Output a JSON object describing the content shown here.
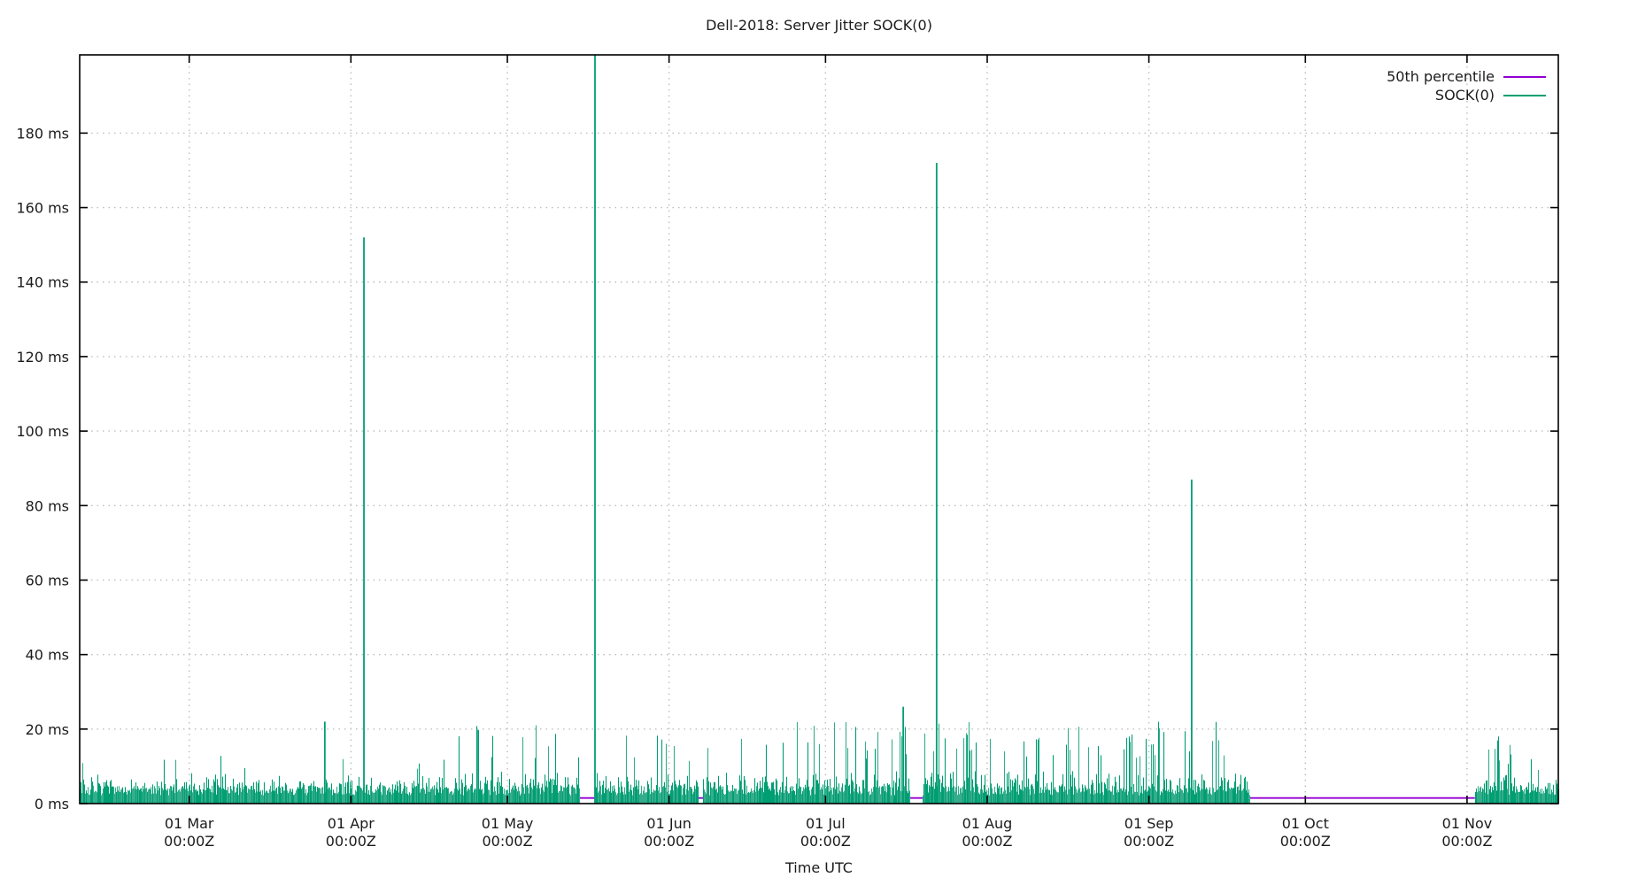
{
  "title": "Dell-2018: Server Jitter SOCK(0)",
  "legend": {
    "position": "top-right-inside",
    "items": [
      {
        "label": "50th percentile",
        "color": "#9400d3"
      },
      {
        "label": "SOCK(0)",
        "color": "#009e73"
      }
    ]
  },
  "axes": {
    "x_label": "Time UTC",
    "x_domain_days": [
      0,
      283.5
    ],
    "x_domain_note": "day 0 = left plot edge (~08 Feb 2018), day 283.5 = right edge (~18 Nov 2018)",
    "x_ticks": [
      {
        "day": 21,
        "line1": "01 Mar",
        "line2": "00:00Z"
      },
      {
        "day": 52,
        "line1": "01 Apr",
        "line2": "00:00Z"
      },
      {
        "day": 82,
        "line1": "01 May",
        "line2": "00:00Z"
      },
      {
        "day": 113,
        "line1": "01 Jun",
        "line2": "00:00Z"
      },
      {
        "day": 143,
        "line1": "01 Jul",
        "line2": "00:00Z"
      },
      {
        "day": 174,
        "line1": "01 Aug",
        "line2": "00:00Z"
      },
      {
        "day": 205,
        "line1": "01 Sep",
        "line2": "00:00Z"
      },
      {
        "day": 235,
        "line1": "01 Oct",
        "line2": "00:00Z"
      },
      {
        "day": 266,
        "line1": "01 Nov",
        "line2": "00:00Z"
      }
    ],
    "y_max_ms": 201,
    "y_ticks": [
      {
        "value": 0,
        "label": "0 ms"
      },
      {
        "value": 20,
        "label": "20 ms"
      },
      {
        "value": 40,
        "label": "40 ms"
      },
      {
        "value": 60,
        "label": "60 ms"
      },
      {
        "value": 80,
        "label": "80 ms"
      },
      {
        "value": 100,
        "label": "100 ms"
      },
      {
        "value": 120,
        "label": "120 ms"
      },
      {
        "value": 140,
        "label": "140 ms"
      },
      {
        "value": 160,
        "label": "160 ms"
      },
      {
        "value": 180,
        "label": "180 ms"
      }
    ],
    "grid": "dotted gray at every month (vertical) and every 20 ms (horizontal)"
  },
  "colors": {
    "sock0_green": "#009e73",
    "sock0_green_light": "#35ad8c",
    "percentile_purple": "#9400d3",
    "grid_gray": "#bdbdbd",
    "border_black": "#000000",
    "text": "#1b1b1b"
  },
  "chart_data": {
    "type": "line",
    "subtype": "impulse jitter time-series",
    "x_unit": "days since left edge (~08 Feb 2018)",
    "y_unit": "ms",
    "title": "Dell-2018: Server Jitter SOCK(0)",
    "xlabel": "Time UTC",
    "ylabel": "",
    "ylim": [
      0,
      201
    ],
    "series": [
      {
        "name": "50th percentile",
        "color": "#9400d3",
        "style": "flat horizontal line, hidden under green where data exists, visible in data gaps",
        "value_ms": 1.5,
        "extent_days": [
          0,
          267.5
        ]
      },
      {
        "name": "SOCK(0)",
        "color": "#009e73",
        "style": "impulses (vertical lines from 0)",
        "baseline_band_ms": [
          0,
          9
        ],
        "segments": [
          {
            "from_day": 0,
            "to_day": 71,
            "band_hi_ms": 8,
            "spike_prob": 0.02,
            "spike_ms": [
              9,
              13
            ],
            "desc": "Feb-mid Apr: quiet band 0-8ms, rare 9-13ms pops"
          },
          {
            "from_day": 71,
            "to_day": 95.9,
            "band_hi_ms": 9,
            "spike_prob": 0.11,
            "spike_ms": [
              12,
              21
            ],
            "desc": "mid Apr-mid May: frequent 12-21ms spikes"
          },
          {
            "from_day": 98.8,
            "to_day": 118.5,
            "band_hi_ms": 8,
            "spike_prob": 0.07,
            "spike_ms": [
              11,
              19
            ],
            "desc": "late May: moderate spikes"
          },
          {
            "from_day": 119.5,
            "to_day": 159.1,
            "band_hi_ms": 9,
            "spike_prob": 0.105,
            "spike_ms": [
              12,
              22
            ],
            "desc": "Jun-mid Jul: frequent 12-22ms spikes"
          },
          {
            "from_day": 161.6,
            "to_day": 224.4,
            "band_hi_ms": 9,
            "spike_prob": 0.14,
            "spike_ms": [
              12,
              22
            ],
            "desc": "late Jul-mid Sep: densest spiking"
          },
          {
            "from_day": 267.5,
            "to_day": 275.0,
            "band_hi_ms": 8,
            "spike_prob": 0.095,
            "spike_ms": [
              10,
              19
            ],
            "desc": "early Nov: active burst"
          },
          {
            "from_day": 275.0,
            "to_day": 283.5,
            "band_hi_ms": 7,
            "spike_prob": 0.04,
            "spike_ms": [
              8,
              12
            ],
            "desc": "mid Nov: calmer tail"
          }
        ],
        "gaps_days": [
          {
            "from_day": 95.9,
            "to_day": 98.8,
            "approx": "14-17 May"
          },
          {
            "from_day": 118.5,
            "to_day": 119.5,
            "approx": "06-07 Jun"
          },
          {
            "from_day": 159.1,
            "to_day": 161.6,
            "approx": "16-19 Jul"
          },
          {
            "from_day": 224.4,
            "to_day": 267.5,
            "approx": "mid Sep - 02 Nov (whole October missing)"
          }
        ],
        "major_spikes": [
          {
            "day": 47.0,
            "approx_date": "27 Mar",
            "value_ms": 22,
            "clipped": false
          },
          {
            "day": 54.5,
            "approx_date": "03 Apr",
            "value_ms": 152,
            "clipped": false
          },
          {
            "day": 98.8,
            "approx_date": "17 May",
            "value_ms": 205,
            "clipped": true
          },
          {
            "day": 157.9,
            "approx_date": "15 Jul",
            "value_ms": 26,
            "clipped": false
          },
          {
            "day": 164.3,
            "approx_date": "22 Jul",
            "value_ms": 172,
            "clipped": false
          },
          {
            "day": 213.2,
            "approx_date": "09 Sep",
            "value_ms": 87,
            "clipped": false
          }
        ]
      }
    ],
    "legend_entries": [
      "50th percentile",
      "SOCK(0)"
    ],
    "legend_position": "top-right inside plot, labels left of line swatches",
    "grid_on": true
  }
}
